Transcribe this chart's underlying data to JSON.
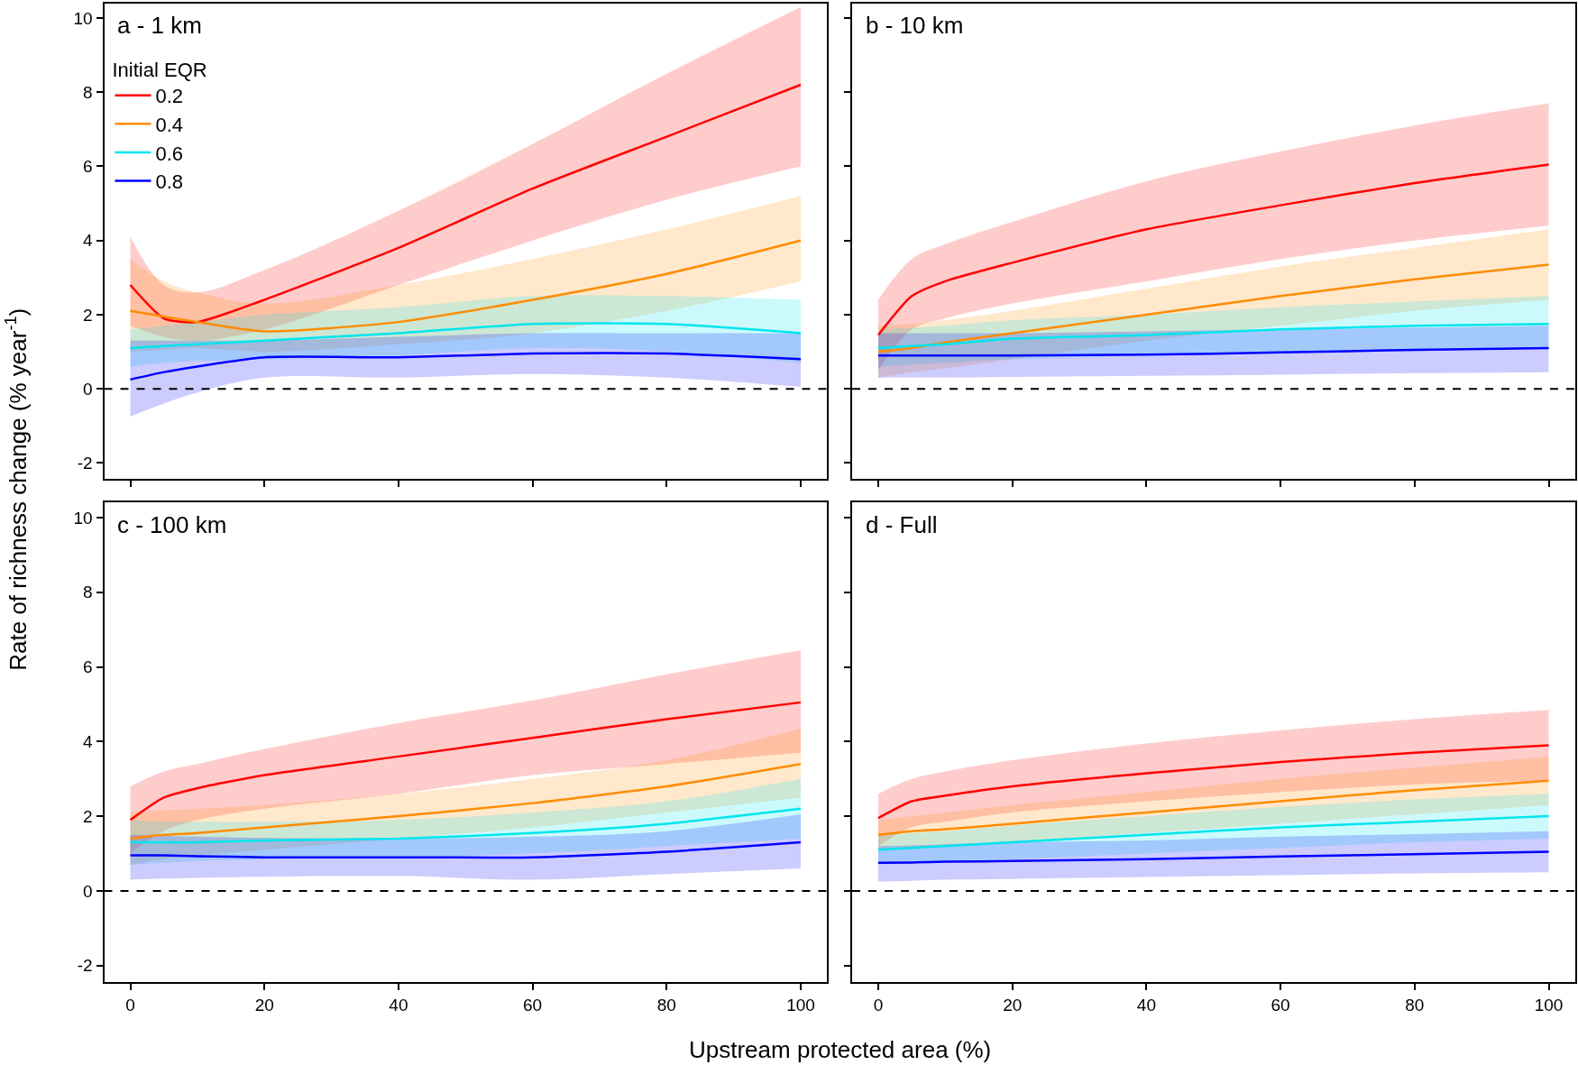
{
  "chart_data": [
    {
      "type": "line",
      "title": "a - 1 km",
      "ylabel": "Rate of richness change (% year$^{-1}$)",
      "legend_title": "Initial EQR",
      "legend": "top left",
      "tick_labels": "y",
      "marker": "none",
      "line_style": "solid",
      "x": [
        0,
        5,
        10,
        20,
        40,
        60,
        80,
        100
      ],
      "xlim": [
        -3.9,
        103.9
      ],
      "xticks": [
        0,
        20,
        40,
        60,
        80,
        100
      ],
      "ylim": [
        -2.44,
        10.4
      ],
      "yticks": [
        -2,
        0,
        2,
        4,
        6,
        8,
        10
      ],
      "ref_lines": [
        {
          "axis": "y",
          "value": 0,
          "line_style": "dashed",
          "color": "#000000"
        }
      ],
      "series": [
        {
          "name": "0.2",
          "color": "#ff0000",
          "values": [
            2.8,
            1.9,
            1.8,
            2.4,
            3.8,
            5.4,
            6.8,
            8.2
          ],
          "lower": [
            1.7,
            1.4,
            1.3,
            1.6,
            2.8,
            4.0,
            5.1,
            6.0
          ],
          "upper": [
            4.1,
            2.8,
            2.6,
            3.2,
            4.8,
            6.6,
            8.5,
            10.3
          ]
        },
        {
          "name": "0.4",
          "color": "#ff8c00",
          "values": [
            2.1,
            1.95,
            1.8,
            1.55,
            1.8,
            2.4,
            3.1,
            4.0
          ],
          "lower": [
            1.0,
            1.05,
            1.1,
            1.0,
            1.2,
            1.5,
            2.1,
            2.9
          ],
          "upper": [
            3.5,
            2.9,
            2.6,
            2.3,
            2.8,
            3.5,
            4.3,
            5.2
          ]
        },
        {
          "name": "0.6",
          "color": "#00e5ee",
          "values": [
            1.1,
            1.15,
            1.2,
            1.3,
            1.5,
            1.75,
            1.75,
            1.5
          ],
          "lower": [
            0.6,
            0.7,
            0.75,
            0.8,
            0.9,
            1.1,
            1.0,
            0.7
          ],
          "upper": [
            1.6,
            1.7,
            1.8,
            2.0,
            2.2,
            2.5,
            2.5,
            2.4
          ]
        },
        {
          "name": "0.8",
          "color": "#0000ff",
          "values": [
            0.25,
            0.45,
            0.6,
            0.85,
            0.85,
            0.95,
            0.95,
            0.8
          ],
          "lower": [
            -0.75,
            -0.4,
            -0.1,
            0.3,
            0.3,
            0.4,
            0.3,
            0.05
          ],
          "upper": [
            1.3,
            1.3,
            1.3,
            1.3,
            1.4,
            1.5,
            1.5,
            1.5
          ]
        }
      ]
    },
    {
      "type": "line",
      "title": "b - 10 km",
      "tick_labels": false,
      "marker": "none",
      "line_style": "solid",
      "x": [
        0,
        5,
        10,
        20,
        40,
        60,
        80,
        100
      ],
      "xlim": [
        -3.9,
        103.9
      ],
      "xticks": [
        0,
        20,
        40,
        60,
        80,
        100
      ],
      "ylim": [
        -2.44,
        10.4
      ],
      "yticks": [
        -2,
        0,
        2,
        4,
        6,
        8,
        10
      ],
      "ref_lines": [
        {
          "axis": "y",
          "value": 0,
          "line_style": "dashed",
          "color": "#000000"
        }
      ],
      "series": [
        {
          "color": "#ff0000",
          "values": [
            1.45,
            2.5,
            2.9,
            3.4,
            4.3,
            4.95,
            5.55,
            6.05
          ],
          "lower": [
            0.5,
            1.6,
            1.9,
            2.3,
            2.9,
            3.5,
            4.0,
            4.4
          ],
          "upper": [
            2.4,
            3.5,
            3.9,
            4.5,
            5.6,
            6.4,
            7.1,
            7.7
          ]
        },
        {
          "color": "#ff8c00",
          "values": [
            1.0,
            1.1,
            1.25,
            1.5,
            2.0,
            2.5,
            2.95,
            3.35
          ],
          "lower": [
            0.3,
            0.45,
            0.55,
            0.8,
            1.3,
            1.7,
            2.1,
            2.4
          ],
          "upper": [
            1.7,
            1.75,
            1.85,
            2.1,
            2.7,
            3.3,
            3.8,
            4.3
          ]
        },
        {
          "color": "#00e5ee",
          "values": [
            1.1,
            1.15,
            1.2,
            1.35,
            1.45,
            1.6,
            1.7,
            1.75
          ],
          "lower": [
            0.6,
            0.65,
            0.7,
            0.8,
            0.9,
            1.0,
            1.05,
            1.1
          ],
          "upper": [
            1.6,
            1.65,
            1.7,
            1.85,
            2.0,
            2.2,
            2.35,
            2.5
          ]
        },
        {
          "color": "#0000ff",
          "values": [
            0.9,
            0.9,
            0.9,
            0.9,
            0.92,
            0.98,
            1.05,
            1.1
          ],
          "lower": [
            0.3,
            0.3,
            0.3,
            0.32,
            0.35,
            0.38,
            0.42,
            0.45
          ],
          "upper": [
            1.5,
            1.5,
            1.5,
            1.5,
            1.55,
            1.6,
            1.65,
            1.7
          ]
        }
      ]
    },
    {
      "type": "line",
      "title": "c - 100 km",
      "xlabel": "Upstream protected area (%)",
      "marker": "none",
      "line_style": "solid",
      "x": [
        0,
        5,
        10,
        20,
        40,
        60,
        80,
        100
      ],
      "xlim": [
        -3.9,
        103.9
      ],
      "xticks": [
        0,
        20,
        40,
        60,
        80,
        100
      ],
      "ylim": [
        -2.44,
        10.4
      ],
      "yticks": [
        -2,
        0,
        2,
        4,
        6,
        8,
        10
      ],
      "ref_lines": [
        {
          "axis": "y",
          "value": 0,
          "line_style": "dashed",
          "color": "#000000"
        }
      ],
      "series": [
        {
          "color": "#ff0000",
          "values": [
            1.9,
            2.5,
            2.75,
            3.1,
            3.6,
            4.1,
            4.6,
            5.05
          ],
          "lower": [
            1.0,
            1.6,
            1.9,
            2.2,
            2.6,
            3.1,
            3.4,
            3.7
          ],
          "upper": [
            2.8,
            3.2,
            3.4,
            3.8,
            4.5,
            5.1,
            5.8,
            6.45
          ]
        },
        {
          "color": "#ff8c00",
          "values": [
            1.4,
            1.5,
            1.55,
            1.7,
            2.0,
            2.35,
            2.8,
            3.4
          ],
          "lower": [
            0.7,
            0.85,
            0.95,
            1.1,
            1.4,
            1.7,
            2.1,
            2.5
          ],
          "upper": [
            2.1,
            2.15,
            2.2,
            2.3,
            2.6,
            3.0,
            3.5,
            4.35
          ]
        },
        {
          "color": "#00e5ee",
          "values": [
            1.3,
            1.3,
            1.3,
            1.35,
            1.4,
            1.55,
            1.8,
            2.2
          ],
          "lower": [
            0.7,
            0.75,
            0.8,
            0.85,
            0.9,
            1.0,
            1.2,
            1.4
          ],
          "upper": [
            1.9,
            1.85,
            1.85,
            1.85,
            1.9,
            2.1,
            2.4,
            3.0
          ]
        },
        {
          "color": "#0000ff",
          "values": [
            0.95,
            0.95,
            0.93,
            0.9,
            0.9,
            0.9,
            1.05,
            1.3
          ],
          "lower": [
            0.3,
            0.33,
            0.35,
            0.38,
            0.4,
            0.3,
            0.45,
            0.6
          ],
          "upper": [
            1.5,
            1.48,
            1.45,
            1.42,
            1.4,
            1.45,
            1.6,
            2.05
          ]
        }
      ]
    },
    {
      "type": "line",
      "title": "d - Full",
      "tick_labels": "x",
      "marker": "none",
      "line_style": "solid",
      "x": [
        0,
        5,
        10,
        20,
        40,
        60,
        80,
        100
      ],
      "xlim": [
        -3.9,
        103.9
      ],
      "xticks": [
        0,
        20,
        40,
        60,
        80,
        100
      ],
      "ylim": [
        -2.44,
        10.4
      ],
      "yticks": [
        -2,
        0,
        2,
        4,
        6,
        8,
        10
      ],
      "ref_lines": [
        {
          "axis": "y",
          "value": 0,
          "line_style": "dashed",
          "color": "#000000"
        }
      ],
      "series": [
        {
          "color": "#ff0000",
          "values": [
            1.95,
            2.4,
            2.55,
            2.8,
            3.15,
            3.45,
            3.7,
            3.9
          ],
          "lower": [
            1.2,
            1.7,
            1.85,
            2.1,
            2.4,
            2.65,
            2.85,
            2.95
          ],
          "upper": [
            2.6,
            3.0,
            3.2,
            3.5,
            3.95,
            4.3,
            4.6,
            4.85
          ]
        },
        {
          "color": "#ff8c00",
          "values": [
            1.5,
            1.6,
            1.65,
            1.8,
            2.1,
            2.4,
            2.7,
            2.95
          ],
          "lower": [
            1.1,
            1.15,
            1.2,
            1.3,
            1.55,
            1.8,
            2.05,
            2.3
          ],
          "upper": [
            1.9,
            2.0,
            2.1,
            2.3,
            2.65,
            3.0,
            3.3,
            3.6
          ]
        },
        {
          "color": "#00e5ee",
          "values": [
            1.1,
            1.15,
            1.2,
            1.3,
            1.5,
            1.7,
            1.85,
            2.0
          ],
          "lower": [
            0.7,
            0.75,
            0.8,
            0.85,
            1.0,
            1.15,
            1.3,
            1.4
          ],
          "upper": [
            1.5,
            1.55,
            1.6,
            1.75,
            2.0,
            2.25,
            2.45,
            2.6
          ]
        },
        {
          "color": "#0000ff",
          "values": [
            0.75,
            0.76,
            0.78,
            0.8,
            0.85,
            0.92,
            0.98,
            1.05
          ],
          "lower": [
            0.25,
            0.27,
            0.3,
            0.32,
            0.37,
            0.42,
            0.47,
            0.5
          ],
          "upper": [
            1.2,
            1.22,
            1.25,
            1.3,
            1.35,
            1.45,
            1.52,
            1.6
          ]
        }
      ]
    }
  ]
}
